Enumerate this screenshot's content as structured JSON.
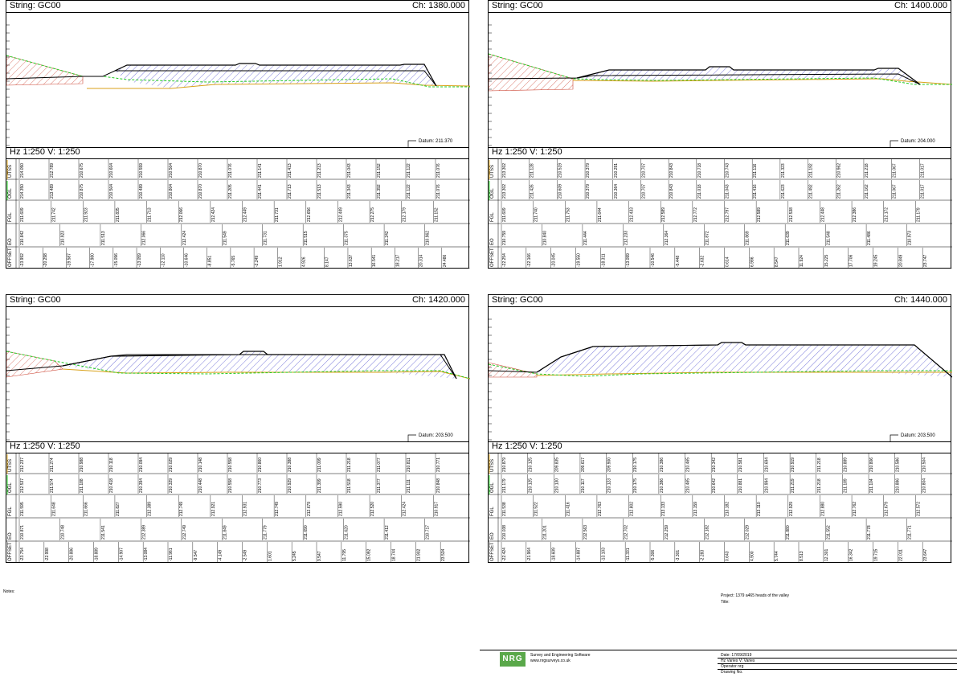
{
  "panels": [
    {
      "string": "String: GC00",
      "chainage": "Ch: 1380.000",
      "scale": "Hz 1:250  V: 1:250",
      "datum": "Datum: 211.370",
      "rows": [
        "UTSS",
        "OGL",
        "FGL",
        "EO",
        "OFFSET"
      ],
      "values": {
        "UTSS": [
          "214.050",
          "212.789",
          "210.675",
          "210.604",
          "210.559",
          "210.504",
          "210.870",
          "211.076",
          "211.141",
          "211.413",
          "211.213",
          "211.043",
          "211.152",
          "211.122",
          "211.076"
        ],
        "OGL": [
          "214.350",
          "213.489",
          "210.875",
          "210.504",
          "210.489",
          "210.804",
          "210.870",
          "211.205",
          "211.441",
          "211.713",
          "211.513",
          "211.343",
          "211.392",
          "211.122",
          "211.076"
        ],
        "FGL": [
          "211.609",
          "211.742",
          "211.923",
          "211.835",
          "211.713",
          "212.066",
          "212.424",
          "212.449",
          "211.731",
          "212.656",
          "212.449",
          "212.275",
          "212.179",
          "211.152"
        ],
        "EO": [
          "210.842",
          "210.923",
          "211.513",
          "212.066",
          "212.424",
          "211.549",
          "211.731",
          "211.515",
          "211.375",
          "211.242",
          "210.962"
        ],
        "OFFSET": [
          "-23.992",
          "-20.298",
          "-19.587",
          "-17.980",
          "-15.096",
          "-13.059",
          "-12.110",
          "-10.646",
          "-8.851",
          "-5.765",
          "-2.249",
          "1.912",
          "4.926",
          "8.147",
          "13.637",
          "16.541",
          "18.217",
          "20.314",
          "24.486"
        ]
      }
    },
    {
      "string": "String: GC00",
      "chainage": "Ch: 1400.000",
      "scale": "Hz 1:250  V: 1:250",
      "datum": "Datum: 204.000",
      "rows": [
        "UTSS",
        "OGL",
        "FGL",
        "EO",
        "OFFSET"
      ],
      "values": {
        "UTSS": [
          "213.302",
          "211.128",
          "210.519",
          "210.379",
          "210.291",
          "210.707",
          "210.843",
          "210.718",
          "210.743",
          "211.116",
          "211.323",
          "211.192",
          "210.962",
          "211.218",
          "211.067",
          "211.017"
        ],
        "OGL": [
          "213.302",
          "211.426",
          "210.609",
          "210.379",
          "210.364",
          "210.707",
          "210.843",
          "211.018",
          "211.043",
          "211.416",
          "211.623",
          "211.492",
          "211.262",
          "211.162",
          "211.067",
          "211.017"
        ],
        "FGL": [
          "211.609",
          "211.740",
          "211.753",
          "211.644",
          "212.433",
          "212.589",
          "212.772",
          "212.797",
          "212.589",
          "212.538",
          "212.448",
          "212.386",
          "212.172",
          "211.179"
        ],
        "EO": [
          "210.759",
          "210.840",
          "211.444",
          "212.233",
          "212.364",
          "211.872",
          "211.869",
          "211.639",
          "211.548",
          "211.486",
          "210.973"
        ],
        "OFFSET": [
          "-22.254",
          "-22.166",
          "-20.045",
          "-19.550",
          "-18.311",
          "-13.099",
          "-10.546",
          "-5.448",
          "-2.632",
          "0.614",
          "6.986",
          "8.547",
          "11.924",
          "15.225",
          "17.706",
          "19.245",
          "20.849",
          "23.747"
        ]
      }
    },
    {
      "string": "String: GC00",
      "chainage": "Ch: 1420.000",
      "scale": "Hz 1:250  V: 1:250",
      "datum": "Datum: 203.500",
      "rows": [
        "UTSS",
        "OGL",
        "FGL",
        "EO",
        "OFFSET"
      ],
      "values": {
        "UTSS": [
          "212.237",
          "211.274",
          "210.988",
          "210.118",
          "210.094",
          "210.029",
          "210.148",
          "210.558",
          "210.860",
          "210.388",
          "211.099",
          "211.218",
          "211.077",
          "210.811",
          "210.771"
        ],
        "OGL": [
          "212.537",
          "211.574",
          "211.188",
          "210.418",
          "210.394",
          "210.329",
          "210.448",
          "210.558",
          "210.773",
          "210.929",
          "211.399",
          "211.518",
          "211.377",
          "211.111",
          "210.848"
        ],
        "FGL": [
          "211.595",
          "211.648",
          "211.666",
          "211.827",
          "212.389",
          "212.749",
          "212.921",
          "212.931",
          "212.749",
          "212.679",
          "212.590",
          "212.520",
          "212.424",
          "210.917"
        ],
        "EO": [
          "210.871",
          "210.748",
          "211.541",
          "212.389",
          "212.749",
          "211.849",
          "211.779",
          "211.690",
          "211.620",
          "211.412",
          "210.717"
        ],
        "OFFSET": [
          "-23.754",
          "-22.998",
          "-20.886",
          "-18.889",
          "-14.907",
          "-13.084",
          "-11.961",
          "-9.547",
          "-4.149",
          "-2.549",
          "1.601",
          "5.245",
          "9.547",
          "11.795",
          "15.092",
          "18.744",
          "21.902",
          "23.534"
        ]
      }
    },
    {
      "string": "String: GC00",
      "chainage": "Ch: 1440.000",
      "scale": "Hz 1:250  V: 1:250",
      "datum": "Datum: 203.500",
      "rows": [
        "UTSS",
        "OGL",
        "FGL",
        "EO",
        "OFFSET"
      ],
      "values": {
        "UTSS": [
          "210.879",
          "210.125",
          "209.835",
          "209.617",
          "209.900",
          "210.175",
          "210.386",
          "210.465",
          "210.342",
          "210.581",
          "210.694",
          "210.919",
          "211.218",
          "210.889",
          "210.806",
          "210.586",
          "210.504"
        ],
        "OGL": [
          "211.179",
          "210.125",
          "210.130",
          "210.117",
          "210.123",
          "210.175",
          "210.386",
          "210.465",
          "210.642",
          "210.881",
          "210.994",
          "211.219",
          "211.218",
          "211.189",
          "211.104",
          "210.886",
          "210.804"
        ],
        "FGL": [
          "211.538",
          "211.522",
          "211.416",
          "212.763",
          "212.802",
          "213.133",
          "213.159",
          "213.182",
          "213.110",
          "212.929",
          "212.880",
          "212.762",
          "212.679",
          "212.572"
        ],
        "EO": [
          "210.038",
          "211.201",
          "212.563",
          "212.702",
          "212.259",
          "212.182",
          "212.029",
          "211.880",
          "211.552",
          "211.778",
          "211.771"
        ],
        "OFFSET": [
          "-22.424",
          "-21.964",
          "-18.609",
          "-14.887",
          "-13.103",
          "-11.331",
          "-5.306",
          "-3.301",
          "-2.283",
          "0.643",
          "4.900",
          "5.744",
          "8.513",
          "12.301",
          "16.342",
          "19.715",
          "22.011",
          "23.647"
        ]
      }
    }
  ],
  "notes_label": "Notes:",
  "project": "Project:  1379 a465 heads of the valley",
  "title_label": "Title:",
  "logo_text": "NRG",
  "company_line1": "Survey and Engineering Software",
  "company_line2": "www.nrgsurveys.co.uk",
  "date": "Date:    17/09/2019",
  "scales": "Hz Varies    V: Varies",
  "operator": "Operator   nrg",
  "drawing_no": "Drawing No.",
  "colors": {
    "cut": "#cc4433",
    "fill": "#4444cc",
    "ogl": "#22cc22",
    "design": "#000000",
    "subgrade": "#d9a21a"
  }
}
